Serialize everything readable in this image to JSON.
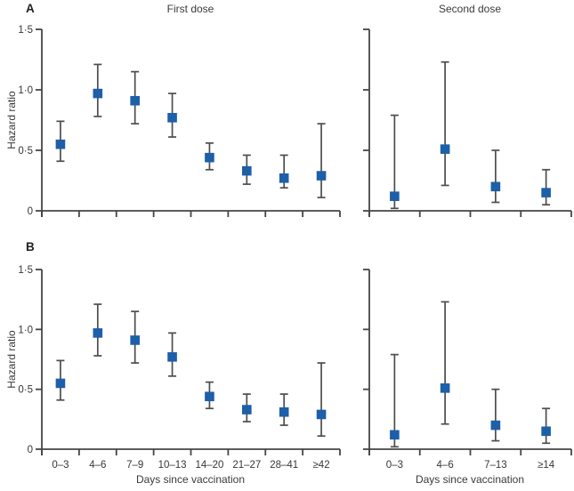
{
  "figure": {
    "panels": {
      "a": "A",
      "b": "B"
    },
    "column_titles": {
      "first": "First dose",
      "second": "Second dose"
    },
    "y_axis_label": "Hazard ratio",
    "x_axis_label": "Days since vaccination",
    "colors": {
      "background": "#ffffff",
      "marker": "#1d5fa8",
      "axis": "#454545",
      "whisker": "#4d4d4d",
      "text": "#363636"
    }
  },
  "chart_data": [
    {
      "id": "a_first",
      "panel": "A",
      "title": "First dose",
      "type": "scatter",
      "marker": "square",
      "error_bars": true,
      "xlabel": "Days since vaccination",
      "ylabel": "Hazard ratio",
      "ylim": [
        0,
        1.5
      ],
      "yticks": [
        0,
        0.5,
        1.0,
        1.5
      ],
      "ytick_labels": [
        "0",
        "0·5",
        "1·0",
        "1·5"
      ],
      "categories": [
        "0–3",
        "4–6",
        "7–9",
        "10–13",
        "14–20",
        "21–27",
        "28–41",
        "≥42"
      ],
      "hazard_ratio": [
        0.55,
        0.97,
        0.91,
        0.77,
        0.44,
        0.33,
        0.27,
        0.29
      ],
      "ci_low": [
        0.41,
        0.78,
        0.72,
        0.61,
        0.34,
        0.22,
        0.19,
        0.11
      ],
      "ci_high": [
        0.74,
        1.21,
        1.15,
        0.97,
        0.56,
        0.46,
        0.46,
        0.72
      ]
    },
    {
      "id": "a_second",
      "panel": "A",
      "title": "Second dose",
      "type": "scatter",
      "marker": "square",
      "error_bars": true,
      "xlabel": "Days since vaccination",
      "ylabel": "Hazard ratio",
      "ylim": [
        0,
        1.5
      ],
      "yticks": [
        0,
        0.5,
        1.0,
        1.5
      ],
      "ytick_labels": [
        "0",
        "0·5",
        "1·0",
        "1·5"
      ],
      "categories": [
        "0–3",
        "4–6",
        "7–13",
        "≥14"
      ],
      "hazard_ratio": [
        0.12,
        0.51,
        0.2,
        0.15
      ],
      "ci_low": [
        0.02,
        0.21,
        0.07,
        0.05
      ],
      "ci_high": [
        0.79,
        1.23,
        0.5,
        0.34
      ]
    },
    {
      "id": "b_first",
      "panel": "B",
      "title": "First dose",
      "type": "scatter",
      "marker": "square",
      "error_bars": true,
      "xlabel": "Days since vaccination",
      "ylabel": "Hazard ratio",
      "ylim": [
        0,
        1.5
      ],
      "yticks": [
        0,
        0.5,
        1.0,
        1.5
      ],
      "ytick_labels": [
        "0",
        "0·5",
        "1·0",
        "1·5"
      ],
      "categories": [
        "0–3",
        "4–6",
        "7–9",
        "10–13",
        "14–20",
        "21–27",
        "28–41",
        "≥42"
      ],
      "hazard_ratio": [
        0.55,
        0.97,
        0.91,
        0.77,
        0.44,
        0.33,
        0.31,
        0.29
      ],
      "ci_low": [
        0.41,
        0.78,
        0.72,
        0.61,
        0.34,
        0.23,
        0.2,
        0.11
      ],
      "ci_high": [
        0.74,
        1.21,
        1.15,
        0.97,
        0.56,
        0.46,
        0.46,
        0.72
      ]
    },
    {
      "id": "b_second",
      "panel": "B",
      "title": "Second dose",
      "type": "scatter",
      "marker": "square",
      "error_bars": true,
      "xlabel": "Days since vaccination",
      "ylabel": "Hazard ratio",
      "ylim": [
        0,
        1.5
      ],
      "yticks": [
        0,
        0.5,
        1.0,
        1.5
      ],
      "ytick_labels": [
        "0",
        "0·5",
        "1·0",
        "1·5"
      ],
      "categories": [
        "0–3",
        "4–6",
        "7–13",
        "≥14"
      ],
      "hazard_ratio": [
        0.12,
        0.51,
        0.2,
        0.15
      ],
      "ci_low": [
        0.02,
        0.21,
        0.07,
        0.05
      ],
      "ci_high": [
        0.79,
        1.23,
        0.5,
        0.34
      ]
    }
  ]
}
